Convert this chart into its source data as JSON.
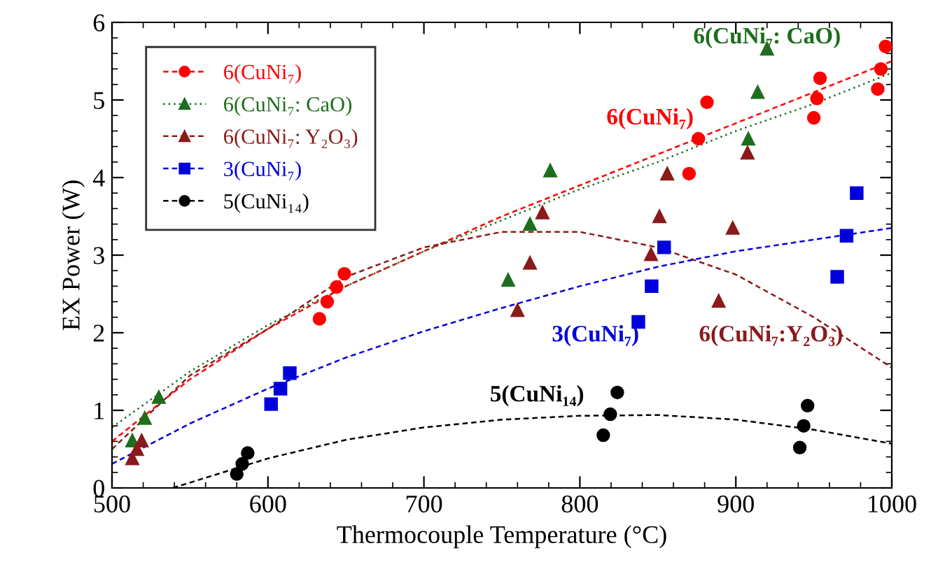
{
  "chart_data": {
    "type": "scatter",
    "xlabel": "Thermocouple Temperature (°C)",
    "ylabel": "EX Power (W)",
    "xlim": [
      500,
      1000
    ],
    "xticks": [
      500,
      600,
      700,
      800,
      900,
      1000
    ],
    "ylim": [
      0,
      6
    ],
    "yticks": [
      0,
      1,
      2,
      3,
      4,
      5,
      6
    ],
    "grid": false,
    "legend": "top left",
    "series": [
      {
        "name": "6(CuNi₇)",
        "color": "#ff0000",
        "marker": "circle",
        "x": [
          633,
          638,
          644,
          649,
          870,
          876,
          881.5,
          950,
          952,
          954,
          991,
          993,
          996
        ],
        "values": [
          2.18,
          2.4,
          2.59,
          2.76,
          4.05,
          4.5,
          4.97,
          4.77,
          5.02,
          5.28,
          5.14,
          5.4,
          5.69
        ]
      },
      {
        "name": "6(CuNi₇: CaO)",
        "color": "#1e6e1e",
        "marker": "triangle",
        "x": [
          513,
          521,
          530,
          754,
          768,
          781,
          908,
          914,
          920
        ],
        "values": [
          0.61,
          0.9,
          1.17,
          2.68,
          3.4,
          4.09,
          4.5,
          5.1,
          5.66
        ]
      },
      {
        "name": "6(CuNi₇: Y₂O₃)",
        "color": "#8b1a1a",
        "marker": "triangle",
        "x": [
          513,
          516,
          519,
          760,
          768,
          776,
          845.6,
          851,
          856,
          889,
          898,
          907.5
        ],
        "values": [
          0.38,
          0.5,
          0.61,
          2.29,
          2.9,
          3.55,
          3.01,
          3.5,
          4.05,
          2.41,
          3.35,
          4.32
        ]
      },
      {
        "name": "3(CuNi₇)",
        "color": "#0000dd",
        "marker": "square",
        "x": [
          602,
          608,
          614,
          837.5,
          846,
          854,
          965,
          971,
          977.5
        ],
        "values": [
          1.08,
          1.28,
          1.48,
          2.14,
          2.6,
          3.1,
          2.72,
          3.25,
          3.8
        ]
      },
      {
        "name": "5(CuNi₁₄)",
        "color": "#000000",
        "marker": "circle",
        "x": [
          580,
          583.5,
          587,
          815,
          819.5,
          824,
          941,
          943.5,
          946
        ],
        "values": [
          0.18,
          0.31,
          0.45,
          0.68,
          0.95,
          1.23,
          0.52,
          0.8,
          1.06
        ]
      },
      {
        "type": "line",
        "color": "#ff0000",
        "line_style": "dashed",
        "marker": "none",
        "x": [
          500,
          550,
          600,
          650,
          700,
          750,
          800,
          850,
          900,
          950,
          1000
        ],
        "values": [
          0.6,
          1.4,
          2.05,
          2.6,
          3.05,
          3.5,
          3.9,
          4.3,
          4.7,
          5.1,
          5.5
        ]
      },
      {
        "type": "line",
        "color": "#1e6e1e",
        "line_style": "dotted",
        "marker": "none",
        "x": [
          500,
          550,
          600,
          650,
          700,
          750,
          800,
          850,
          900,
          950,
          1000
        ],
        "values": [
          0.78,
          1.5,
          2.1,
          2.6,
          3.05,
          3.45,
          3.85,
          4.2,
          4.6,
          4.95,
          5.35
        ]
      },
      {
        "type": "line",
        "color": "#8b1a1a",
        "line_style": "dashed",
        "marker": "none",
        "x": [
          500,
          550,
          600,
          650,
          700,
          750,
          800,
          850,
          900,
          950,
          1000
        ],
        "values": [
          0.5,
          1.45,
          2.05,
          2.72,
          3.1,
          3.3,
          3.3,
          3.1,
          2.75,
          2.2,
          1.55
        ]
      },
      {
        "type": "line",
        "color": "#0000dd",
        "line_style": "dashed",
        "marker": "none",
        "x": [
          500,
          550,
          600,
          650,
          700,
          750,
          800,
          850,
          900,
          950,
          1000
        ],
        "values": [
          0.31,
          0.83,
          1.28,
          1.68,
          2.02,
          2.32,
          2.6,
          2.85,
          3.05,
          3.2,
          3.35
        ]
      },
      {
        "type": "line",
        "color": "#000000",
        "line_style": "dashed",
        "marker": "none",
        "x": [
          539,
          600,
          650,
          700,
          750,
          800,
          850,
          900,
          950,
          1000
        ],
        "values": [
          0,
          0.38,
          0.62,
          0.78,
          0.88,
          0.93,
          0.94,
          0.88,
          0.75,
          0.57
        ]
      }
    ],
    "annotations": [
      "6(CuNi₇)",
      "6(CuNi₇: CaO)",
      "6(CuNi₇:Y₂O₃)",
      "3(CuNi₇)",
      "5(CuNi₁₄)"
    ]
  }
}
